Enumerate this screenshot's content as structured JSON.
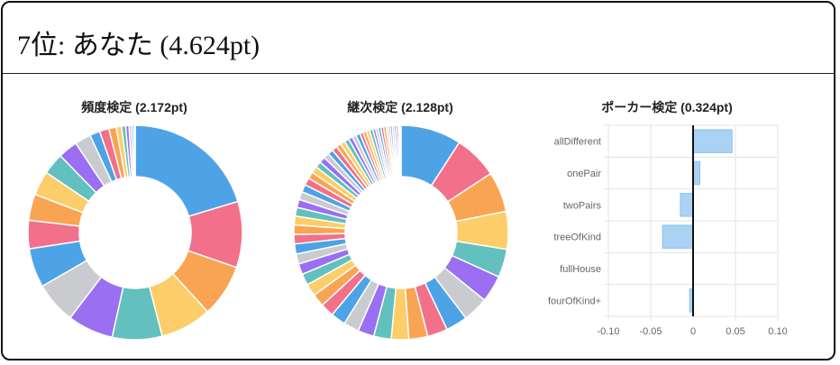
{
  "header": {
    "rank": "7位",
    "sep": ": ",
    "name": "あなた",
    "score": "(4.624pt)"
  },
  "colors": {
    "palette": [
      "#4da3e6",
      "#f27089",
      "#f9a452",
      "#fdcd69",
      "#62c0bf",
      "#9a6ff2",
      "#c9cbcf"
    ],
    "bar_fill": "#a9d2f4",
    "bar_stroke": "#8cc2ee"
  },
  "chart_data": [
    {
      "type": "pie",
      "title": "頻度検定 (2.172pt)",
      "donut": true,
      "values": [
        20.0,
        9.8,
        7.8,
        7.6,
        7.4,
        6.8,
        6.2,
        5.8,
        4.2,
        3.9,
        3.6,
        3.2,
        2.9,
        2.4,
        1.5,
        1.4,
        1.1,
        0.8,
        0.6,
        0.5,
        0.4,
        0.3,
        0.2
      ]
    },
    {
      "type": "pie",
      "title": "継次検定 (2.128pt)",
      "donut": true,
      "values": [
        9.0,
        6.5,
        6.0,
        5.6,
        4.2,
        4.0,
        3.8,
        3.2,
        3.0,
        2.8,
        2.6,
        2.6,
        2.4,
        2.3,
        2.2,
        2.0,
        1.9,
        1.8,
        1.7,
        1.6,
        1.5,
        1.5,
        1.4,
        1.4,
        1.3,
        1.3,
        1.2,
        1.2,
        1.1,
        1.1,
        1.0,
        1.0,
        0.9,
        0.9,
        0.8,
        0.8,
        0.8,
        0.7,
        0.7,
        0.7,
        0.6,
        0.6,
        0.6,
        0.5,
        0.5,
        0.5,
        0.5,
        0.4,
        0.4,
        0.4,
        0.4,
        0.4,
        0.3,
        0.3,
        0.3,
        0.3,
        0.3,
        0.3,
        0.2,
        0.2
      ]
    },
    {
      "type": "bar",
      "orientation": "horizontal",
      "title": "ポーカー検定 (0.324pt)",
      "categories": [
        "allDifferent",
        "onePair",
        "twoPairs",
        "treeOfKind",
        "fullHouse",
        "fourOfKind+"
      ],
      "values": [
        0.046,
        0.008,
        -0.015,
        -0.036,
        0.0,
        -0.004
      ],
      "xlim": [
        -0.1,
        0.1
      ],
      "xticks": [
        "-0.10",
        "-0.05",
        "0",
        "0.05",
        "0.10"
      ],
      "grid": true
    }
  ]
}
